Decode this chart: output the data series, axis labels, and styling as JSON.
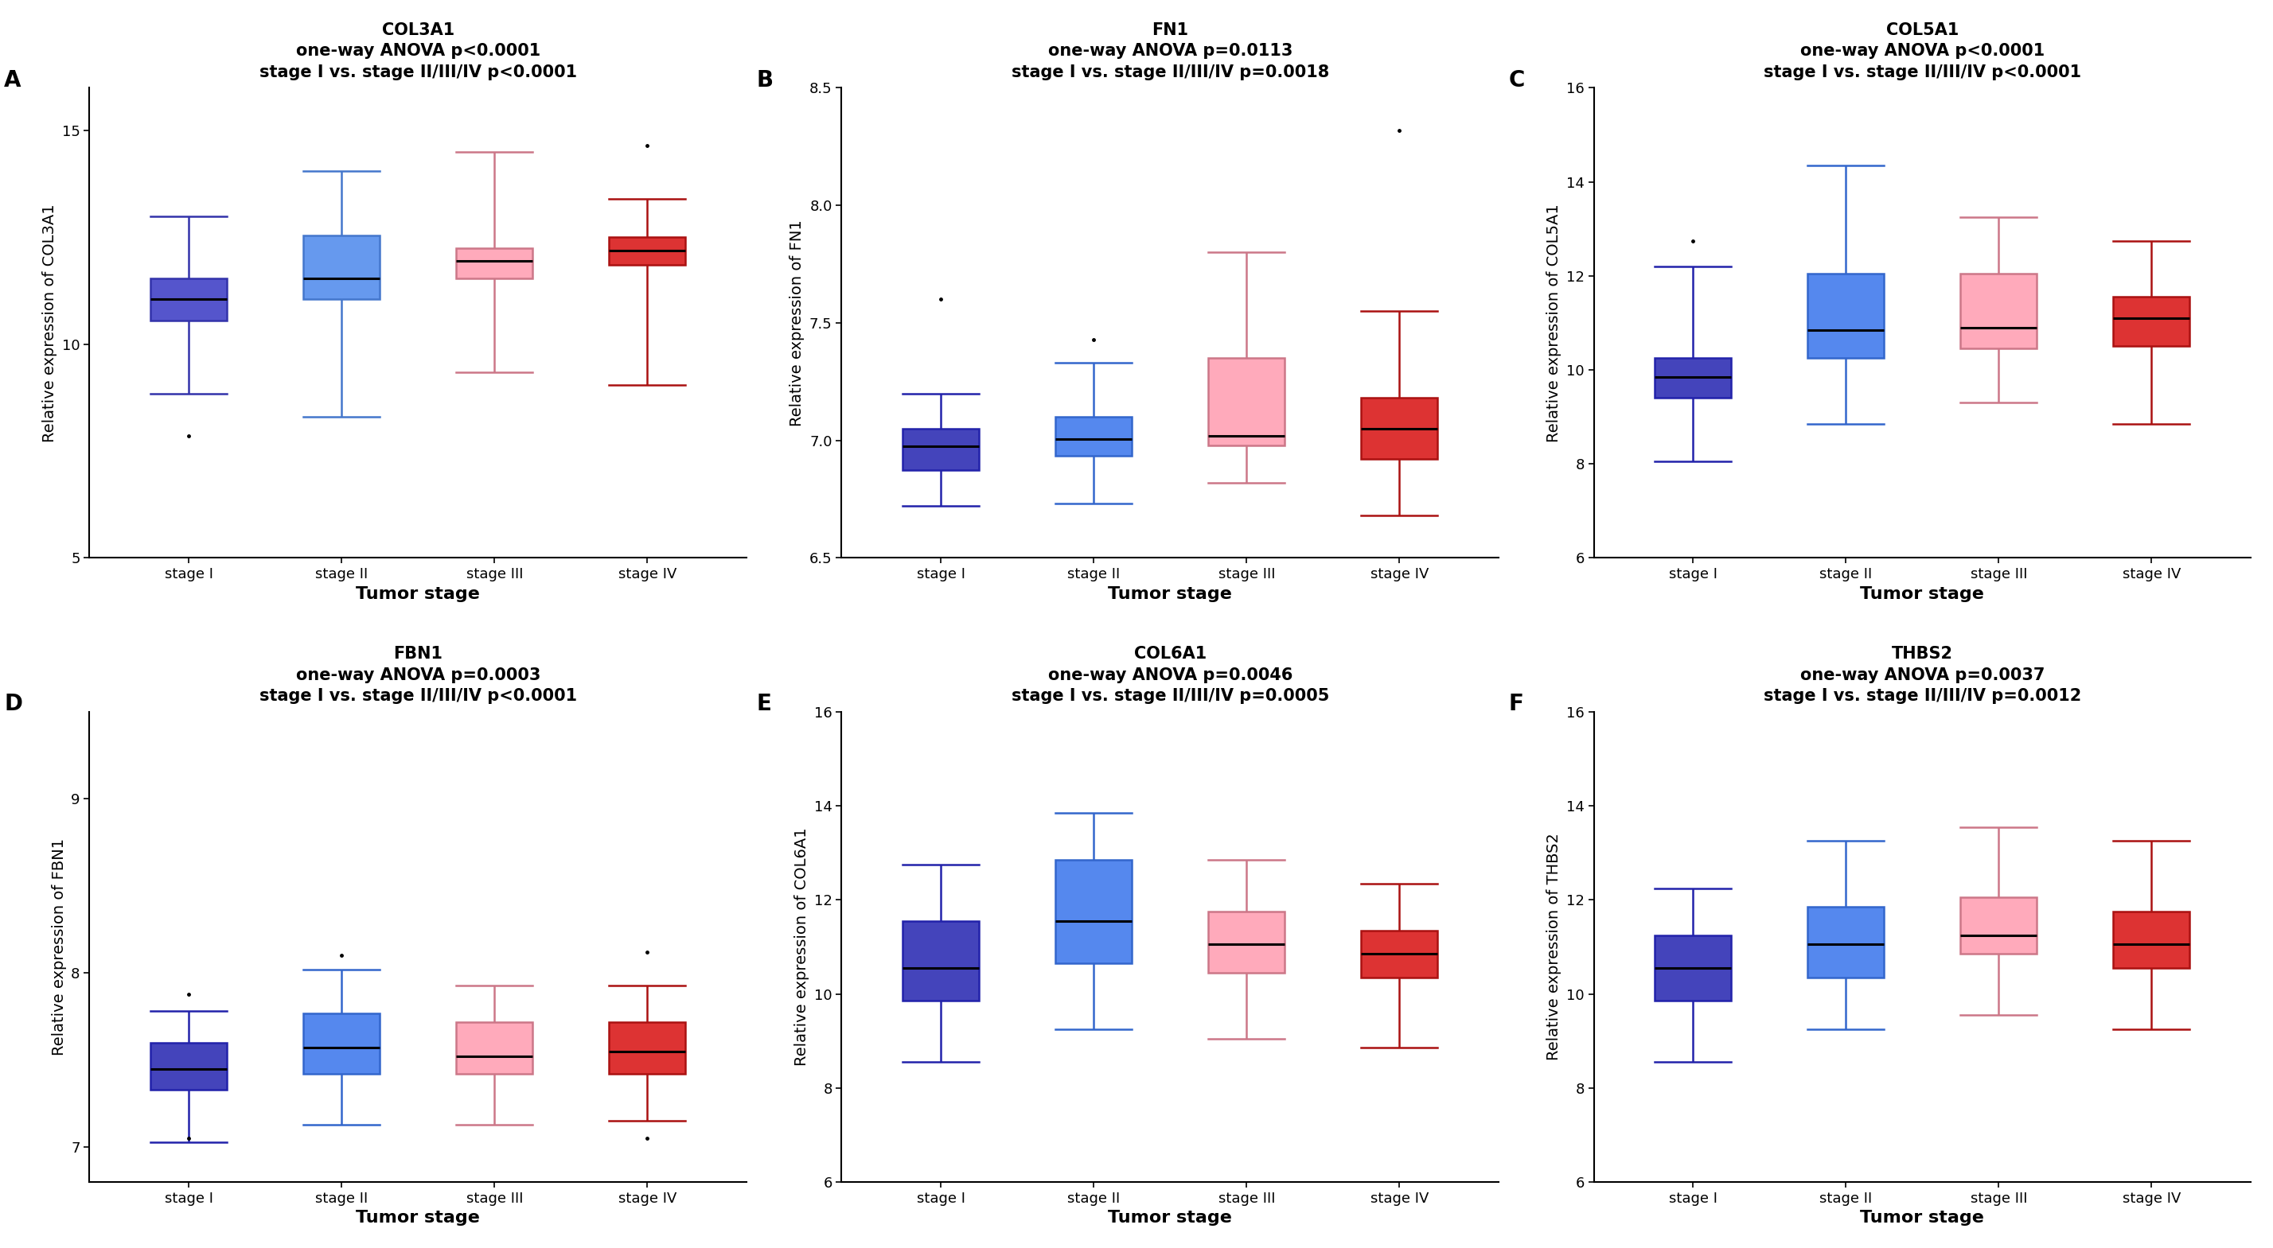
{
  "panels": [
    {
      "label": "A",
      "gene": "COL3A1",
      "title_line1": "COL3A1",
      "title_line2": "one-way ANOVA p<0.0001",
      "title_line3": "stage I vs. stage II/III/IV p<0.0001",
      "ylabel": "Relative expression of COL3A1",
      "xlabel": "Tumor stage",
      "ylim": [
        5,
        16
      ],
      "yticks": [
        5,
        10,
        15
      ],
      "stages": [
        "stage I",
        "stage II",
        "stage III",
        "stage IV"
      ],
      "fill_colors": [
        "#5555CC",
        "#6699EE",
        "#FFAABB",
        "#DD3333"
      ],
      "edge_colors": [
        "#3333AA",
        "#4477CC",
        "#CC7788",
        "#AA1111"
      ],
      "medians": [
        11.05,
        11.55,
        11.95,
        12.2
      ],
      "q1": [
        10.55,
        11.05,
        11.55,
        11.85
      ],
      "q3": [
        11.55,
        12.55,
        12.25,
        12.5
      ],
      "whislo": [
        8.85,
        8.3,
        9.35,
        9.05
      ],
      "whishi": [
        13.0,
        14.05,
        14.5,
        13.4
      ],
      "fliers": [
        [
          7.85
        ],
        [],
        [],
        [
          14.65
        ]
      ]
    },
    {
      "label": "B",
      "gene": "FN1",
      "title_line1": "FN1",
      "title_line2": "one-way ANOVA p=0.0113",
      "title_line3": "stage I vs. stage II/III/IV p=0.0018",
      "ylabel": "Relative expression of FN1",
      "xlabel": "Tumor stage",
      "ylim": [
        6.5,
        8.5
      ],
      "yticks": [
        6.5,
        7.0,
        7.5,
        8.0,
        8.5
      ],
      "stages": [
        "stage I",
        "stage II",
        "stage III",
        "stage IV"
      ],
      "fill_colors": [
        "#4444BB",
        "#5588EE",
        "#FFAABB",
        "#DD3333"
      ],
      "edge_colors": [
        "#2222AA",
        "#3366CC",
        "#CC7788",
        "#AA1111"
      ],
      "medians": [
        6.975,
        7.005,
        7.02,
        7.05
      ],
      "q1": [
        6.875,
        6.935,
        6.98,
        6.92
      ],
      "q3": [
        7.05,
        7.1,
        7.35,
        7.18
      ],
      "whislo": [
        6.72,
        6.73,
        6.82,
        6.68
      ],
      "whishi": [
        7.2,
        7.33,
        7.8,
        7.55
      ],
      "fliers": [
        [
          7.6
        ],
        [
          7.43
        ],
        [],
        [
          8.32
        ]
      ]
    },
    {
      "label": "C",
      "gene": "COL5A1",
      "title_line1": "COL5A1",
      "title_line2": "one-way ANOVA p<0.0001",
      "title_line3": "stage I vs. stage II/III/IV p<0.0001",
      "ylabel": "Relative expression of COL5A1",
      "xlabel": "Tumor stage",
      "ylim": [
        6,
        16
      ],
      "yticks": [
        6,
        8,
        10,
        12,
        14,
        16
      ],
      "stages": [
        "stage I",
        "stage II",
        "stage III",
        "stage IV"
      ],
      "fill_colors": [
        "#4444BB",
        "#5588EE",
        "#FFAABB",
        "#DD3333"
      ],
      "edge_colors": [
        "#2222AA",
        "#3366CC",
        "#CC7788",
        "#AA1111"
      ],
      "medians": [
        9.85,
        10.85,
        10.9,
        11.1
      ],
      "q1": [
        9.4,
        10.25,
        10.45,
        10.5
      ],
      "q3": [
        10.25,
        12.05,
        12.05,
        11.55
      ],
      "whislo": [
        8.05,
        8.85,
        9.3,
        8.85
      ],
      "whishi": [
        12.2,
        14.35,
        13.25,
        12.75
      ],
      "fliers": [
        [
          12.75
        ],
        [],
        [],
        []
      ]
    },
    {
      "label": "D",
      "gene": "FBN1",
      "title_line1": "FBN1",
      "title_line2": "one-way ANOVA p=0.0003",
      "title_line3": "stage I vs. stage II/III/IV p<0.0001",
      "ylabel": "Relative expression of FBN1",
      "xlabel": "Tumor stage",
      "ylim": [
        6.8,
        9.5
      ],
      "yticks": [
        7,
        8,
        9
      ],
      "stages": [
        "stage I",
        "stage II",
        "stage III",
        "stage IV"
      ],
      "fill_colors": [
        "#4444BB",
        "#5588EE",
        "#FFAABB",
        "#DD3333"
      ],
      "edge_colors": [
        "#2222AA",
        "#3366CC",
        "#CC7788",
        "#AA1111"
      ],
      "medians": [
        7.45,
        7.57,
        7.52,
        7.55
      ],
      "q1": [
        7.33,
        7.42,
        7.42,
        7.42
      ],
      "q3": [
        7.6,
        7.77,
        7.72,
        7.72
      ],
      "whislo": [
        7.03,
        7.13,
        7.13,
        7.15
      ],
      "whishi": [
        7.78,
        8.02,
        7.93,
        7.93
      ],
      "fliers": [
        [
          7.88,
          7.05
        ],
        [
          8.1
        ],
        [],
        [
          8.12,
          7.05
        ]
      ]
    },
    {
      "label": "E",
      "gene": "COL6A1",
      "title_line1": "COL6A1",
      "title_line2": "one-way ANOVA p=0.0046",
      "title_line3": "stage I vs. stage II/III/IV p=0.0005",
      "ylabel": "Relative expression of COL6A1",
      "xlabel": "Tumor stage",
      "ylim": [
        6,
        16
      ],
      "yticks": [
        6,
        8,
        10,
        12,
        14,
        16
      ],
      "stages": [
        "stage I",
        "stage II",
        "stage III",
        "stage IV"
      ],
      "fill_colors": [
        "#4444BB",
        "#5588EE",
        "#FFAABB",
        "#DD3333"
      ],
      "edge_colors": [
        "#2222AA",
        "#3366CC",
        "#CC7788",
        "#AA1111"
      ],
      "medians": [
        10.55,
        11.55,
        11.05,
        10.85
      ],
      "q1": [
        9.85,
        10.65,
        10.45,
        10.35
      ],
      "q3": [
        11.55,
        12.85,
        11.75,
        11.35
      ],
      "whislo": [
        8.55,
        9.25,
        9.05,
        8.85
      ],
      "whishi": [
        12.75,
        13.85,
        12.85,
        12.35
      ],
      "fliers": [
        [],
        [],
        [],
        []
      ]
    },
    {
      "label": "F",
      "gene": "THBS2",
      "title_line1": "THBS2",
      "title_line2": "one-way ANOVA p=0.0037",
      "title_line3": "stage I vs. stage II/III/IV p=0.0012",
      "ylabel": "Relative expression of THBS2",
      "xlabel": "Tumor stage",
      "ylim": [
        6,
        16
      ],
      "yticks": [
        6,
        8,
        10,
        12,
        14,
        16
      ],
      "stages": [
        "stage I",
        "stage II",
        "stage III",
        "stage IV"
      ],
      "fill_colors": [
        "#4444BB",
        "#5588EE",
        "#FFAABB",
        "#DD3333"
      ],
      "edge_colors": [
        "#2222AA",
        "#3366CC",
        "#CC7788",
        "#AA1111"
      ],
      "medians": [
        10.55,
        11.05,
        11.25,
        11.05
      ],
      "q1": [
        9.85,
        10.35,
        10.85,
        10.55
      ],
      "q3": [
        11.25,
        11.85,
        12.05,
        11.75
      ],
      "whislo": [
        8.55,
        9.25,
        9.55,
        9.25
      ],
      "whishi": [
        12.25,
        13.25,
        13.55,
        13.25
      ],
      "fliers": [
        [],
        [],
        [],
        []
      ]
    }
  ],
  "background_color": "#ffffff",
  "title_fontsize": 15,
  "panel_label_fontsize": 20,
  "tick_fontsize": 13,
  "axis_label_fontsize": 14,
  "xlabel_fontsize": 16
}
